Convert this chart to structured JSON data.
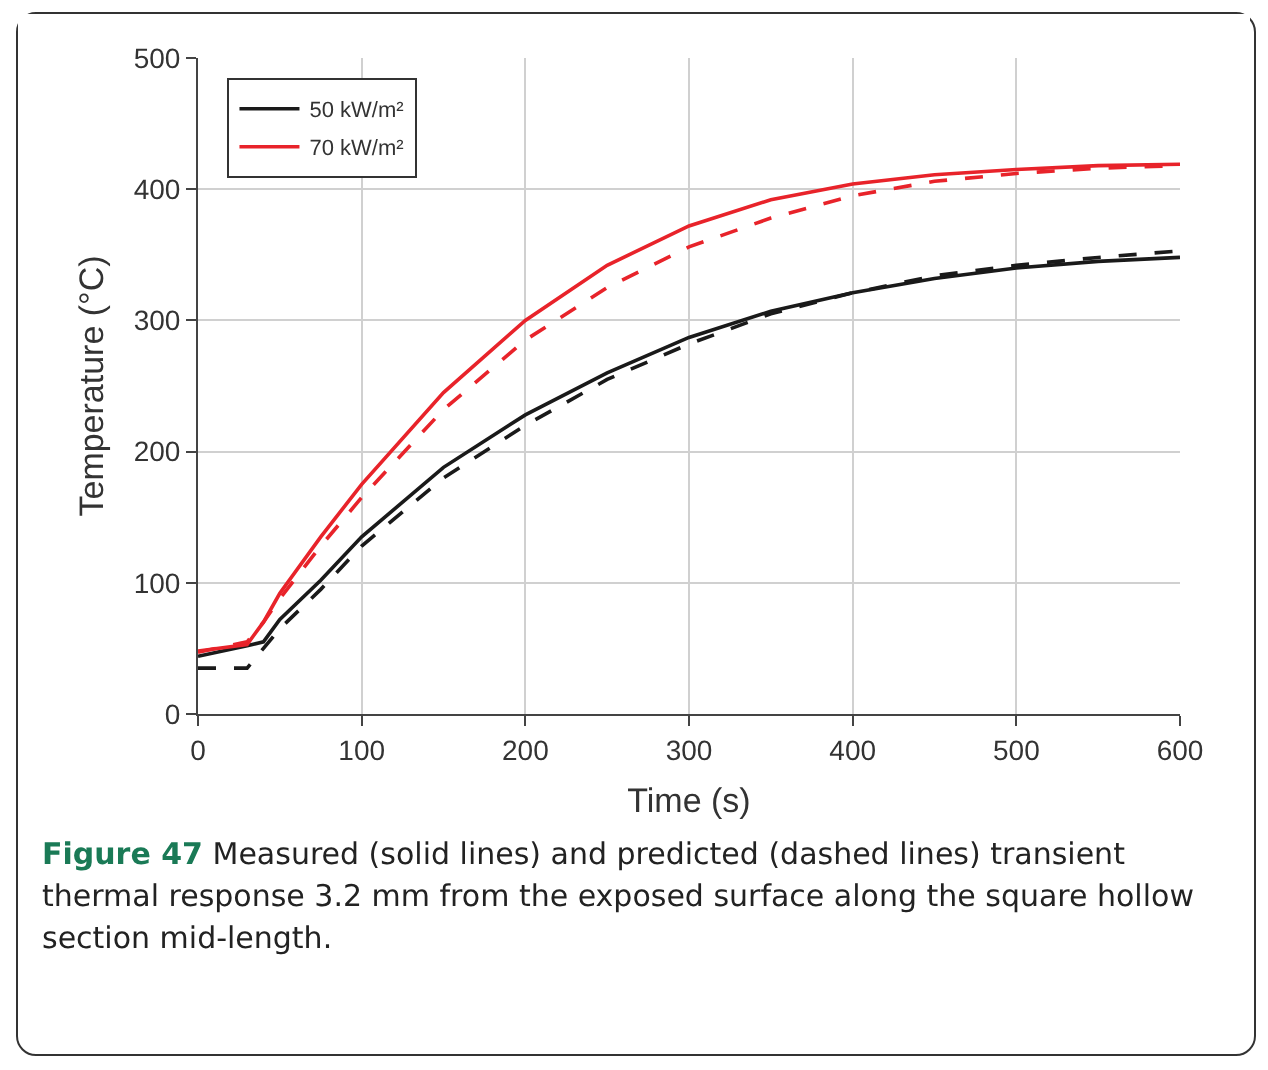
{
  "chart_data": {
    "type": "line",
    "xlabel": "Time (s)",
    "ylabel": "Temperature (°C)",
    "xlim": [
      0,
      600
    ],
    "ylim": [
      0,
      500
    ],
    "xticks": [
      0,
      100,
      200,
      300,
      400,
      500,
      600
    ],
    "yticks": [
      0,
      100,
      200,
      300,
      400,
      500
    ],
    "grid": true,
    "legend": "top left",
    "marker": "none",
    "x": [
      0,
      30,
      40,
      50,
      75,
      100,
      150,
      200,
      250,
      300,
      350,
      400,
      450,
      500,
      550,
      600
    ],
    "series": [
      {
        "name": "50 kW/m²",
        "color": "#1a1a1a",
        "line_style": "solid",
        "values": [
          44,
          52,
          55,
          72,
          102,
          135,
          188,
          228,
          260,
          287,
          307,
          321,
          332,
          340,
          345,
          348
        ]
      },
      {
        "name": "70 kW/m²",
        "color": "#e8232a",
        "line_style": "solid",
        "values": [
          48,
          53,
          70,
          92,
          135,
          175,
          245,
          300,
          342,
          372,
          392,
          404,
          411,
          415,
          418,
          419
        ]
      },
      {
        "color": "#1a1a1a",
        "line_style": "dashed",
        "values": [
          35,
          35,
          50,
          65,
          95,
          128,
          180,
          220,
          255,
          282,
          305,
          321,
          334,
          342,
          348,
          353
        ]
      },
      {
        "color": "#e8232a",
        "line_style": "dashed",
        "values": [
          47,
          55,
          70,
          88,
          128,
          165,
          232,
          285,
          325,
          356,
          378,
          395,
          406,
          412,
          416,
          418
        ]
      }
    ],
    "annotations": [
      "Figure 47",
      "Measured (solid lines) and predicted (dashed lines) transient thermal response 3.2 mm from the exposed surface along the square hollow section mid-length."
    ]
  }
}
